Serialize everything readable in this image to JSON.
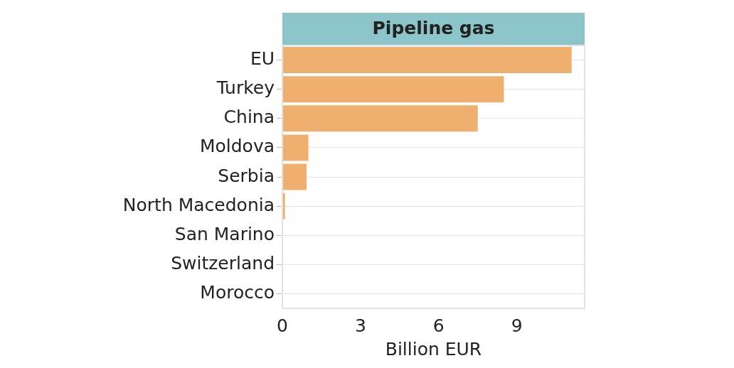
{
  "chart_data": {
    "type": "bar",
    "orientation": "horizontal",
    "title": "Pipeline gas",
    "xlabel": "Billion EUR",
    "categories": [
      "EU",
      "Turkey",
      "China",
      "Moldova",
      "Serbia",
      "North Macedonia",
      "San Marino",
      "Switzerland",
      "Morocco"
    ],
    "values": [
      11.1,
      8.5,
      7.5,
      1.0,
      0.93,
      0.1,
      0,
      0,
      0
    ],
    "color": "#efb06f",
    "xlim": [
      0,
      11.6
    ],
    "xticks": [
      0,
      3,
      6,
      9
    ],
    "grid": "y",
    "legend": false
  }
}
